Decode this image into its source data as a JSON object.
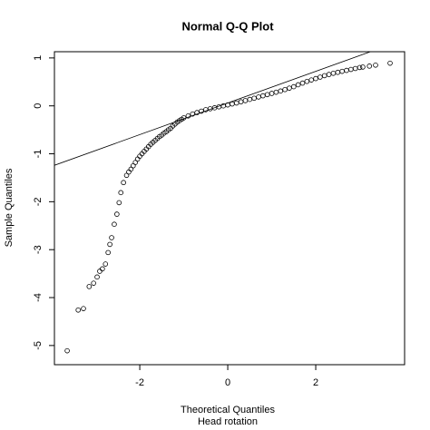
{
  "chart_data": {
    "type": "scatter",
    "title": "Normal Q-Q Plot",
    "x_label": "Theoretical Quantiles",
    "subtitle": "Head rotation",
    "y_label": "Sample Quantiles",
    "xlim": [
      -3.94,
      4.02
    ],
    "ylim": [
      -5.4,
      1.13
    ],
    "xticks": [
      -2,
      0,
      2
    ],
    "yticks": [
      -5,
      -4,
      -3,
      -2,
      -1,
      0,
      1
    ],
    "color": "#000000",
    "x": [
      -3.65,
      -3.4,
      -3.28,
      -3.15,
      -3.05,
      -2.97,
      -2.91,
      -2.85,
      -2.78,
      -2.72,
      -2.68,
      -2.64,
      -2.58,
      -2.52,
      -2.47,
      -2.43,
      -2.37,
      -2.3,
      -2.25,
      -2.2,
      -2.15,
      -2.1,
      -2.05,
      -2.0,
      -1.95,
      -1.9,
      -1.85,
      -1.8,
      -1.75,
      -1.7,
      -1.65,
      -1.6,
      -1.55,
      -1.5,
      -1.45,
      -1.4,
      -1.35,
      -1.3,
      -1.25,
      -1.2,
      -1.15,
      -1.1,
      -1.05,
      -1.0,
      -0.9,
      -0.8,
      -0.7,
      -0.6,
      -0.5,
      -0.4,
      -0.3,
      -0.2,
      -0.1,
      0,
      0.1,
      0.2,
      0.3,
      0.4,
      0.5,
      0.6,
      0.7,
      0.8,
      0.9,
      1.0,
      1.1,
      1.2,
      1.3,
      1.4,
      1.5,
      1.6,
      1.7,
      1.8,
      1.9,
      2.0,
      2.1,
      2.2,
      2.3,
      2.4,
      2.5,
      2.6,
      2.7,
      2.8,
      2.9,
      3.0,
      3.07,
      3.22,
      3.36,
      3.69
    ],
    "values": [
      -5.11,
      -4.26,
      -4.23,
      -3.77,
      -3.7,
      -3.57,
      -3.45,
      -3.4,
      -3.3,
      -3.06,
      -2.89,
      -2.75,
      -2.47,
      -2.26,
      -2.02,
      -1.81,
      -1.6,
      -1.45,
      -1.38,
      -1.32,
      -1.25,
      -1.18,
      -1.11,
      -1.05,
      -1.0,
      -0.95,
      -0.9,
      -0.85,
      -0.8,
      -0.76,
      -0.72,
      -0.68,
      -0.64,
      -0.61,
      -0.57,
      -0.54,
      -0.5,
      -0.47,
      -0.42,
      -0.38,
      -0.34,
      -0.31,
      -0.28,
      -0.25,
      -0.21,
      -0.17,
      -0.14,
      -0.11,
      -0.08,
      -0.06,
      -0.04,
      -0.02,
      0.0,
      0.02,
      0.04,
      0.06,
      0.085,
      0.11,
      0.135,
      0.16,
      0.185,
      0.21,
      0.235,
      0.26,
      0.285,
      0.31,
      0.34,
      0.37,
      0.4,
      0.44,
      0.475,
      0.51,
      0.54,
      0.57,
      0.6,
      0.63,
      0.655,
      0.68,
      0.7,
      0.72,
      0.74,
      0.76,
      0.78,
      0.8,
      0.81,
      0.83,
      0.85,
      0.89
    ],
    "reference_line": {
      "intercept": 0.06,
      "slope": 0.33
    }
  }
}
